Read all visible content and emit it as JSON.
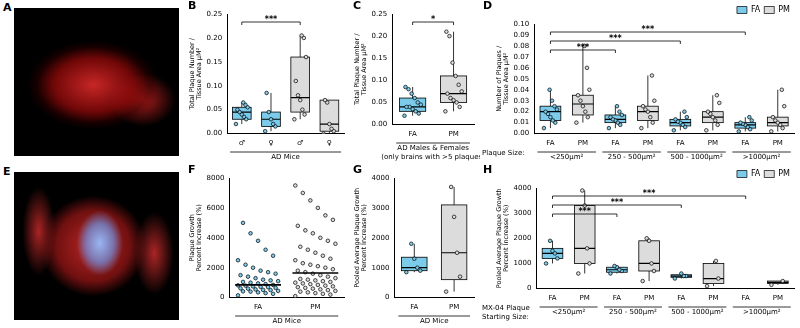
{
  "chart_data": [
    {
      "type": "image",
      "title": "A"
    },
    {
      "type": "box",
      "title": "B",
      "y_label": [
        "Total Plaque Number /",
        "Tissue Area µM²"
      ],
      "x_label": "AD Mice",
      "categories": [
        "♂",
        "♀",
        "♂",
        "♀"
      ],
      "colors": [
        "#7ccbea",
        "#7ccbea",
        "#dcdcdc",
        "#dcdcdc"
      ],
      "boxes": [
        {
          "min": 0.02,
          "q1": 0.03,
          "median": 0.045,
          "q3": 0.055,
          "max": 0.065,
          "points": [
            0.02,
            0.03,
            0.035,
            0.04,
            0.045,
            0.05,
            0.055,
            0.06,
            0.065
          ]
        },
        {
          "min": 0.005,
          "q1": 0.015,
          "median": 0.03,
          "q3": 0.045,
          "max": 0.085,
          "points": [
            0.005,
            0.015,
            0.02,
            0.03,
            0.045,
            0.085
          ]
        },
        {
          "min": 0.03,
          "q1": 0.045,
          "median": 0.075,
          "q3": 0.16,
          "max": 0.205,
          "points": [
            0.03,
            0.04,
            0.05,
            0.07,
            0.08,
            0.11,
            0.16,
            0.2,
            0.205
          ]
        },
        {
          "min": 0,
          "q1": 0.005,
          "median": 0.02,
          "q3": 0.07,
          "max": 0.07,
          "points": [
            0,
            0.005,
            0.01,
            0.02,
            0.065,
            0.07
          ]
        }
      ],
      "comparisons": [
        {
          "between": [
            0,
            2
          ],
          "label": "***"
        }
      ],
      "ylim": [
        0,
        0.25
      ],
      "yticks": [
        {
          "value": 0,
          "label": "0.00"
        },
        {
          "value": 0.05,
          "label": "0.05"
        },
        {
          "value": 0.1,
          "label": "0.10"
        },
        {
          "value": 0.15,
          "label": "0.15"
        },
        {
          "value": 0.2,
          "label": "0.20"
        },
        {
          "value": 0.25,
          "label": "0.25"
        }
      ],
      "grid": false
    },
    {
      "type": "box",
      "title": "C",
      "y_label": [
        "Total Plaque Number /",
        "Tissue Area µM²"
      ],
      "x_label": [
        "AD Males & Females",
        "(only brains with >5 plaques)"
      ],
      "categories": [
        "FA",
        "PM"
      ],
      "colors": [
        "#7ccbea",
        "#dcdcdc"
      ],
      "boxes": [
        {
          "min": 0.02,
          "q1": 0.03,
          "median": 0.04,
          "q3": 0.06,
          "max": 0.085,
          "points": [
            0.02,
            0.025,
            0.03,
            0.035,
            0.04,
            0.04,
            0.045,
            0.05,
            0.06,
            0.07,
            0.08,
            0.085
          ]
        },
        {
          "min": 0.03,
          "q1": 0.05,
          "median": 0.07,
          "q3": 0.11,
          "max": 0.21,
          "points": [
            0.03,
            0.04,
            0.05,
            0.055,
            0.06,
            0.07,
            0.075,
            0.09,
            0.11,
            0.14,
            0.2,
            0.21
          ]
        }
      ],
      "comparisons": [
        {
          "between": [
            0,
            1
          ],
          "label": "*"
        }
      ],
      "ylim": [
        0,
        0.25
      ],
      "yticks": [
        {
          "value": 0,
          "label": "0.00"
        },
        {
          "value": 0.05,
          "label": "0.05"
        },
        {
          "value": 0.1,
          "label": "0.10"
        },
        {
          "value": 0.15,
          "label": "0.15"
        },
        {
          "value": 0.2,
          "label": "0.20"
        },
        {
          "value": 0.25,
          "label": "0.25"
        }
      ],
      "grid": false
    },
    {
      "type": "box",
      "title": "D",
      "y_label": [
        "Number of Plaques /",
        "Tissue Area µM²"
      ],
      "x_label": "Plaque Size:",
      "categories": [
        "<250µm²",
        "250 - 500µm²",
        "500 - 1000µm²",
        ">1000µm²"
      ],
      "series": [
        {
          "name": "FA",
          "color": "#7ccbea",
          "boxes": [
            {
              "min": 0.005,
              "q1": 0.012,
              "median": 0.02,
              "q3": 0.025,
              "max": 0.04,
              "points": [
                0.005,
                0.01,
                0.012,
                0.015,
                0.018,
                0.02,
                0.022,
                0.025,
                0.03,
                0.04
              ]
            },
            {
              "min": 0.005,
              "q1": 0.01,
              "median": 0.013,
              "q3": 0.017,
              "max": 0.025,
              "points": [
                0.005,
                0.008,
                0.01,
                0.012,
                0.013,
                0.015,
                0.017,
                0.02,
                0.025
              ]
            },
            {
              "min": 0.003,
              "q1": 0.007,
              "median": 0.01,
              "q3": 0.013,
              "max": 0.02,
              "points": [
                0.003,
                0.006,
                0.008,
                0.01,
                0.011,
                0.013,
                0.015,
                0.02
              ]
            },
            {
              "min": 0.002,
              "q1": 0.005,
              "median": 0.008,
              "q3": 0.01,
              "max": 0.015,
              "points": [
                0.002,
                0.004,
                0.006,
                0.008,
                0.009,
                0.01,
                0.012,
                0.015
              ]
            }
          ]
        },
        {
          "name": "PM",
          "color": "#dcdcdc",
          "boxes": [
            {
              "min": 0.01,
              "q1": 0.017,
              "median": 0.027,
              "q3": 0.035,
              "max": 0.08,
              "points": [
                0.01,
                0.015,
                0.02,
                0.025,
                0.03,
                0.035,
                0.04,
                0.06,
                0.08
              ]
            },
            {
              "min": 0.005,
              "q1": 0.012,
              "median": 0.02,
              "q3": 0.025,
              "max": 0.053,
              "points": [
                0.005,
                0.01,
                0.015,
                0.02,
                0.022,
                0.025,
                0.03,
                0.053
              ]
            },
            {
              "min": 0.003,
              "q1": 0.01,
              "median": 0.015,
              "q3": 0.02,
              "max": 0.035,
              "points": [
                0.003,
                0.008,
                0.012,
                0.015,
                0.018,
                0.02,
                0.028,
                0.035
              ]
            },
            {
              "min": 0.002,
              "q1": 0.007,
              "median": 0.01,
              "q3": 0.015,
              "max": 0.04,
              "points": [
                0.002,
                0.005,
                0.008,
                0.01,
                0.012,
                0.015,
                0.025,
                0.04
              ]
            }
          ]
        }
      ],
      "comparisons": [
        {
          "between": [
            0,
            2
          ],
          "label": "***"
        },
        {
          "between": [
            0,
            4
          ],
          "label": "***"
        },
        {
          "between": [
            0,
            6
          ],
          "label": "***"
        }
      ],
      "ylim": [
        0,
        0.1
      ],
      "yticks": [
        {
          "value": 0,
          "label": "0.00"
        },
        {
          "value": 0.01,
          "label": "0.01"
        },
        {
          "value": 0.02,
          "label": "0.02"
        },
        {
          "value": 0.03,
          "label": "0.03"
        },
        {
          "value": 0.04,
          "label": "0.04"
        },
        {
          "value": 0.05,
          "label": "0.05"
        },
        {
          "value": 0.06,
          "label": "0.06"
        },
        {
          "value": 0.07,
          "label": "0.07"
        },
        {
          "value": 0.08,
          "label": "0.08"
        },
        {
          "value": 0.09,
          "label": "0.09"
        },
        {
          "value": 0.1,
          "label": "0.10"
        }
      ],
      "legend": "upper-right",
      "grid": false
    },
    {
      "type": "image",
      "title": "E"
    },
    {
      "type": "strip",
      "title": "F",
      "y_label": [
        "Plaque Growth",
        "Percent Increase (%)"
      ],
      "x_label": "AD Mice",
      "categories": [
        "FA",
        "PM"
      ],
      "colors": [
        "#7ccbea",
        "#dcdcdc"
      ],
      "points": [
        [
          150,
          250,
          300,
          350,
          400,
          420,
          450,
          500,
          520,
          550,
          600,
          620,
          650,
          700,
          720,
          750,
          800,
          820,
          850,
          900,
          950,
          1000,
          1050,
          1100,
          1150,
          1200,
          1300,
          1400,
          1500,
          1600,
          1700,
          1800,
          2000,
          2200,
          2500,
          2800,
          3200,
          3800,
          4300,
          5000
        ],
        [
          100,
          200,
          250,
          300,
          350,
          400,
          450,
          500,
          550,
          600,
          650,
          700,
          750,
          800,
          850,
          900,
          950,
          1000,
          1050,
          1100,
          1150,
          1200,
          1250,
          1300,
          1400,
          1500,
          1600,
          1700,
          1800,
          1900,
          2000,
          2100,
          2200,
          2300,
          2500,
          2600,
          2800,
          3000,
          3200,
          3400,
          3600,
          3800,
          4000,
          4300,
          4500,
          4800,
          5200,
          5500,
          6000,
          6500,
          7000,
          7500
        ]
      ],
      "means": [
        850,
        1650
      ],
      "ylim": [
        0,
        8000
      ],
      "yticks": [
        0,
        2000,
        4000,
        6000,
        8000
      ],
      "grid": false
    },
    {
      "type": "box",
      "title": "G",
      "y_label": [
        "Pooled Average Plaque Growth",
        "Percent Increase (%)"
      ],
      "x_label": "AD Mice",
      "categories": [
        "FA",
        "PM"
      ],
      "colors": [
        "#7ccbea",
        "#dcdcdc"
      ],
      "boxes": [
        {
          "min": 850,
          "q1": 900,
          "median": 1000,
          "q3": 1350,
          "max": 1800,
          "points": [
            850,
            900,
            1000,
            1300,
            1800
          ]
        },
        {
          "min": 200,
          "q1": 600,
          "median": 1500,
          "q3": 3100,
          "max": 3700,
          "points": [
            200,
            700,
            1500,
            2700,
            3700
          ]
        }
      ],
      "ylim": [
        0,
        4000
      ],
      "yticks": [
        0,
        1000,
        2000,
        3000,
        4000
      ],
      "grid": false
    },
    {
      "type": "box",
      "title": "H",
      "y_label": [
        "Pooled Average Plaque Growth",
        "Percent Increase (%)"
      ],
      "x_label": [
        "MX-04 Plaque",
        "Starting Size:"
      ],
      "categories": [
        "<250µm²",
        "250 - 500µm²",
        "500 - 1000µm²",
        ">1000µm²"
      ],
      "series": [
        {
          "name": "FA",
          "color": "#7ccbea",
          "boxes": [
            {
              "min": 1000,
              "q1": 1200,
              "median": 1400,
              "q3": 1600,
              "max": 1900,
              "points": [
                1000,
                1200,
                1400,
                1500,
                1900
              ]
            },
            {
              "min": 600,
              "q1": 650,
              "median": 750,
              "q3": 850,
              "max": 900,
              "points": [
                600,
                700,
                750,
                850,
                900
              ]
            },
            {
              "min": 400,
              "q1": 450,
              "median": 500,
              "q3": 550,
              "max": 600,
              "points": [
                400,
                500,
                500,
                600
              ]
            },
            null
          ]
        },
        {
          "name": "PM",
          "color": "#dcdcdc",
          "boxes": [
            {
              "min": 600,
              "q1": 1000,
              "median": 1600,
              "q3": 3300,
              "max": 3900,
              "points": [
                600,
                1000,
                1600,
                3300,
                3900
              ]
            },
            {
              "min": 300,
              "q1": 700,
              "median": 1000,
              "q3": 1900,
              "max": 2000,
              "points": [
                300,
                700,
                1000,
                1900,
                2000
              ]
            },
            {
              "min": 100,
              "q1": 200,
              "median": 400,
              "q3": 1000,
              "max": 1100,
              "points": [
                100,
                400,
                1100
              ]
            },
            {
              "min": 150,
              "q1": 200,
              "median": 250,
              "q3": 300,
              "max": 300,
              "points": [
                150,
                300
              ]
            }
          ]
        }
      ],
      "comparisons": [
        {
          "between": [
            0,
            2
          ],
          "label": "***"
        },
        {
          "between": [
            0,
            4
          ],
          "label": "***"
        },
        {
          "between": [
            0,
            6
          ],
          "label": "***"
        }
      ],
      "ylim": [
        0,
        4000
      ],
      "yticks": [
        0,
        1000,
        2000,
        3000,
        4000
      ],
      "legend": "upper-right",
      "grid": false
    }
  ]
}
